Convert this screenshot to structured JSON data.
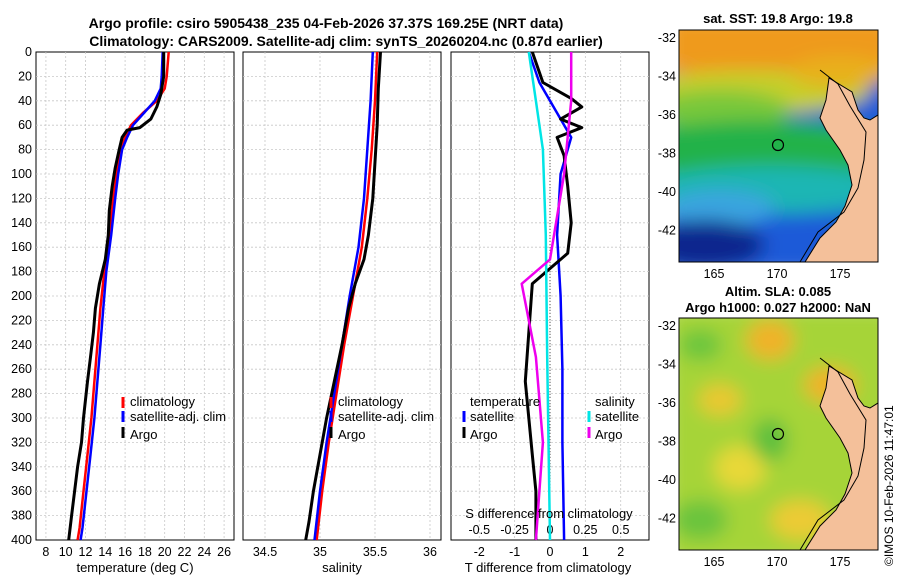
{
  "title": {
    "line1": "Argo profile: csiro 5905438_235 04-Feb-2026 37.37S 169.25E (NRT data)",
    "line2": "Climatology: CARS2009. Satellite-adj clim: synTS_20260204.nc (0.87d earlier)"
  },
  "stamp": "©IMOS 10-Feb-2026 11:47:01",
  "colors": {
    "climatology": "#ff0000",
    "satellite": "#0000ff",
    "argo": "#000000",
    "sal_sat": "#00e5e5",
    "sal_argo": "#ee00ee"
  },
  "chart_data": [
    {
      "type": "line",
      "name": "temperature-profile",
      "xlabel": "temperature (deg C)",
      "ylabel": "",
      "xlim": [
        7,
        27
      ],
      "ylim": [
        400,
        0
      ],
      "xticks": [
        "8",
        "10",
        "12",
        "14",
        "16",
        "18",
        "20",
        "22",
        "24",
        "26"
      ],
      "xtick_values": [
        8,
        10,
        12,
        14,
        16,
        18,
        20,
        22,
        24,
        26
      ],
      "yticks": [
        "0",
        "20",
        "40",
        "60",
        "80",
        "100",
        "120",
        "140",
        "160",
        "180",
        "200",
        "220",
        "240",
        "260",
        "280",
        "300",
        "320",
        "340",
        "360",
        "380",
        "400"
      ],
      "legend": [
        "climatology",
        "satellite-adj. clim",
        "Argo"
      ],
      "series": [
        {
          "name": "climatology",
          "color": "#ff0000",
          "points": [
            [
              20.4,
              0
            ],
            [
              20.2,
              20
            ],
            [
              20.0,
              30
            ],
            [
              19.2,
              40
            ],
            [
              17.8,
              50
            ],
            [
              16.6,
              60
            ],
            [
              16.0,
              70
            ],
            [
              15.5,
              80
            ],
            [
              15.1,
              100
            ],
            [
              14.8,
              120
            ],
            [
              14.4,
              150
            ],
            [
              13.9,
              180
            ],
            [
              13.5,
              210
            ],
            [
              13.2,
              240
            ],
            [
              12.9,
              270
            ],
            [
              12.6,
              300
            ],
            [
              12.2,
              330
            ],
            [
              11.8,
              360
            ],
            [
              11.4,
              390
            ],
            [
              11.2,
              400
            ]
          ]
        },
        {
          "name": "satellite-adj. clim",
          "color": "#0000ff",
          "points": [
            [
              19.8,
              0
            ],
            [
              19.7,
              20
            ],
            [
              19.6,
              30
            ],
            [
              19.0,
              40
            ],
            [
              17.9,
              50
            ],
            [
              16.8,
              60
            ],
            [
              16.2,
              70
            ],
            [
              15.7,
              80
            ],
            [
              15.3,
              100
            ],
            [
              15.0,
              120
            ],
            [
              14.6,
              150
            ],
            [
              14.1,
              180
            ],
            [
              13.8,
              210
            ],
            [
              13.5,
              240
            ],
            [
              13.2,
              270
            ],
            [
              12.9,
              300
            ],
            [
              12.5,
              330
            ],
            [
              12.1,
              360
            ],
            [
              11.7,
              390
            ],
            [
              11.5,
              400
            ]
          ]
        },
        {
          "name": "Argo",
          "color": "#000000",
          "points": [
            [
              19.9,
              0
            ],
            [
              19.9,
              20
            ],
            [
              19.6,
              35
            ],
            [
              19.2,
              45
            ],
            [
              18.6,
              55
            ],
            [
              17.5,
              62
            ],
            [
              16.2,
              64
            ],
            [
              15.7,
              70
            ],
            [
              15.4,
              80
            ],
            [
              15.0,
              95
            ],
            [
              14.7,
              110
            ],
            [
              14.4,
              130
            ],
            [
              14.3,
              150
            ],
            [
              14.0,
              170
            ],
            [
              13.4,
              190
            ],
            [
              13.0,
              210
            ],
            [
              12.8,
              230
            ],
            [
              12.5,
              250
            ],
            [
              12.2,
              270
            ],
            [
              11.8,
              300
            ],
            [
              11.6,
              320
            ],
            [
              11.2,
              340
            ],
            [
              10.9,
              360
            ],
            [
              10.6,
              380
            ],
            [
              10.3,
              400
            ]
          ]
        }
      ]
    },
    {
      "type": "line",
      "name": "salinity-profile",
      "xlabel": "salinity",
      "xlim": [
        34.3,
        36.1
      ],
      "ylim": [
        400,
        0
      ],
      "xticks": [
        "34.5",
        "35",
        "35.5",
        "36"
      ],
      "xtick_values": [
        34.5,
        35,
        35.5,
        36
      ],
      "legend": [
        "climatology",
        "satellite-adj. clim",
        "Argo"
      ],
      "series": [
        {
          "name": "climatology",
          "color": "#ff0000",
          "points": [
            [
              35.52,
              0
            ],
            [
              35.5,
              40
            ],
            [
              35.47,
              80
            ],
            [
              35.43,
              120
            ],
            [
              35.38,
              160
            ],
            [
              35.3,
              200
            ],
            [
              35.22,
              240
            ],
            [
              35.15,
              280
            ],
            [
              35.08,
              320
            ],
            [
              35.02,
              360
            ],
            [
              34.97,
              400
            ]
          ]
        },
        {
          "name": "satellite-adj. clim",
          "color": "#0000ff",
          "points": [
            [
              35.48,
              0
            ],
            [
              35.46,
              40
            ],
            [
              35.43,
              80
            ],
            [
              35.4,
              120
            ],
            [
              35.35,
              160
            ],
            [
              35.27,
              200
            ],
            [
              35.2,
              240
            ],
            [
              35.13,
              280
            ],
            [
              35.06,
              320
            ],
            [
              35.0,
              360
            ],
            [
              34.95,
              400
            ]
          ]
        },
        {
          "name": "Argo",
          "color": "#000000",
          "points": [
            [
              35.55,
              0
            ],
            [
              35.53,
              30
            ],
            [
              35.52,
              60
            ],
            [
              35.5,
              90
            ],
            [
              35.48,
              120
            ],
            [
              35.44,
              150
            ],
            [
              35.4,
              170
            ],
            [
              35.32,
              190
            ],
            [
              35.26,
              210
            ],
            [
              35.2,
              240
            ],
            [
              35.13,
              270
            ],
            [
              35.06,
              300
            ],
            [
              35.0,
              330
            ],
            [
              34.94,
              360
            ],
            [
              34.9,
              385
            ],
            [
              34.87,
              400
            ]
          ]
        }
      ]
    },
    {
      "type": "line",
      "name": "difference-profile",
      "xlabel": "T difference from climatology",
      "x2label": "S difference from climatology",
      "xlim": [
        -2.8,
        2.8
      ],
      "ylim": [
        400,
        0
      ],
      "xticks": [
        "-2",
        "-1",
        "0",
        "1",
        "2"
      ],
      "xtick_values": [
        -2,
        -1,
        0,
        1,
        2
      ],
      "x2ticks": [
        "-0.5",
        "-0.25",
        "0",
        "0.25",
        "0.5"
      ],
      "x2tick_values": [
        -0.5,
        -0.25,
        0,
        0.25,
        0.5
      ],
      "legend_t_title": "temperature",
      "legend_s_title": "salinity",
      "legend_t": [
        "satellite",
        "Argo"
      ],
      "legend_s": [
        "satellite",
        "Argo"
      ],
      "series": [
        {
          "name": "T satellite",
          "color": "#0000ff",
          "points": [
            [
              -0.6,
              0
            ],
            [
              -0.3,
              25
            ],
            [
              0.2,
              50
            ],
            [
              0.6,
              70
            ],
            [
              0.3,
              100
            ],
            [
              0.2,
              150
            ],
            [
              0.3,
              200
            ],
            [
              0.35,
              260
            ],
            [
              0.35,
              320
            ],
            [
              0.4,
              400
            ]
          ]
        },
        {
          "name": "T Argo",
          "color": "#000000",
          "points": [
            [
              -0.5,
              0
            ],
            [
              -0.2,
              25
            ],
            [
              0.6,
              38
            ],
            [
              0.9,
              45
            ],
            [
              0.3,
              55
            ],
            [
              0.9,
              62
            ],
            [
              0.2,
              70
            ],
            [
              0.4,
              85
            ],
            [
              0.5,
              110
            ],
            [
              0.6,
              140
            ],
            [
              0.5,
              165
            ],
            [
              -0.5,
              190
            ],
            [
              -0.6,
              230
            ],
            [
              -0.7,
              270
            ],
            [
              -0.6,
              300
            ],
            [
              -0.5,
              330
            ],
            [
              -0.4,
              360
            ],
            [
              -0.4,
              400
            ]
          ]
        },
        {
          "name": "S satellite",
          "color": "#00e5e5",
          "points": [
            [
              -0.15,
              0
            ],
            [
              -0.1,
              40
            ],
            [
              -0.05,
              80
            ],
            [
              -0.03,
              150
            ],
            [
              -0.02,
              250
            ],
            [
              0,
              400
            ]
          ]
        },
        {
          "name": "S Argo",
          "color": "#ee00ee",
          "points": [
            [
              0.15,
              0
            ],
            [
              0.15,
              40
            ],
            [
              0.1,
              100
            ],
            [
              0.0,
              170
            ],
            [
              -0.2,
              190
            ],
            [
              -0.1,
              250
            ],
            [
              -0.05,
              320
            ],
            [
              -0.1,
              400
            ]
          ]
        }
      ]
    }
  ],
  "maps": [
    {
      "name": "sst-map",
      "title1": "sat. SST: 19.8  Argo: 19.8",
      "title2": "",
      "lon_ticks": [
        "165",
        "170",
        "175"
      ],
      "lat_ticks": [
        "-32",
        "-34",
        "-36",
        "-38",
        "-40",
        "-42"
      ]
    },
    {
      "name": "sla-map",
      "title1": "Altim. SLA: 0.085",
      "title2": "Argo h1000: 0.027 h2000: NaN",
      "lon_ticks": [
        "165",
        "170",
        "175"
      ],
      "lat_ticks": [
        "-32",
        "-34",
        "-36",
        "-38",
        "-40",
        "-42"
      ]
    }
  ]
}
